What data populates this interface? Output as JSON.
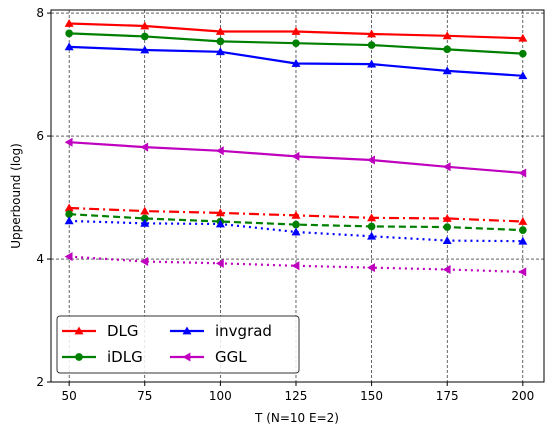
{
  "chart_data": {
    "type": "line",
    "xlabel": "T (N=10 E=2)",
    "ylabel": "Upperbound (log)",
    "x": [
      50,
      75,
      100,
      125,
      150,
      175,
      200
    ],
    "xticks": [
      "50",
      "75",
      "100",
      "125",
      "150",
      "175",
      "200"
    ],
    "yticks": [
      "2",
      "4",
      "6",
      "8"
    ],
    "xlim": [
      44,
      207
    ],
    "ylim": [
      2,
      8.05
    ],
    "grid": true,
    "legend_position": "bottom-left",
    "legend": [
      {
        "label": "DLG",
        "color": "#ff0000",
        "marker": "triangle-up"
      },
      {
        "label": "iDLG",
        "color": "#008000",
        "marker": "circle"
      },
      {
        "label": "invgrad",
        "color": "#0000ff",
        "marker": "triangle-up"
      },
      {
        "label": "GGL",
        "color": "#bf00bf",
        "marker": "triangle-left"
      }
    ],
    "series": [
      {
        "method": "DLG",
        "style": "solid",
        "color": "#ff0000",
        "marker": "triangle-up",
        "values": [
          7.83,
          7.79,
          7.7,
          7.7,
          7.66,
          7.63,
          7.59
        ]
      },
      {
        "method": "iDLG",
        "style": "solid",
        "color": "#008000",
        "marker": "circle",
        "values": [
          7.67,
          7.62,
          7.54,
          7.51,
          7.48,
          7.41,
          7.34
        ]
      },
      {
        "method": "invgrad",
        "style": "solid",
        "color": "#0000ff",
        "marker": "triangle-up",
        "values": [
          7.45,
          7.4,
          7.37,
          7.18,
          7.17,
          7.06,
          6.98
        ]
      },
      {
        "method": "GGL",
        "style": "solid",
        "color": "#bf00bf",
        "marker": "triangle-left",
        "values": [
          5.9,
          5.82,
          5.76,
          5.67,
          5.61,
          5.5,
          5.4
        ]
      },
      {
        "method": "DLG",
        "style": "dashdot",
        "color": "#ff0000",
        "marker": "triangle-up",
        "values": [
          4.83,
          4.78,
          4.75,
          4.71,
          4.67,
          4.66,
          4.61
        ]
      },
      {
        "method": "iDLG",
        "style": "dashed",
        "color": "#008000",
        "marker": "circle",
        "values": [
          4.73,
          4.66,
          4.61,
          4.56,
          4.53,
          4.52,
          4.47
        ]
      },
      {
        "method": "invgrad",
        "style": "dotted",
        "color": "#0000ff",
        "marker": "triangle-up",
        "values": [
          4.62,
          4.58,
          4.57,
          4.44,
          4.37,
          4.3,
          4.29
        ]
      },
      {
        "method": "GGL",
        "style": "dotted",
        "color": "#bf00bf",
        "marker": "triangle-left",
        "values": [
          4.04,
          3.96,
          3.93,
          3.89,
          3.86,
          3.83,
          3.79
        ]
      }
    ]
  }
}
